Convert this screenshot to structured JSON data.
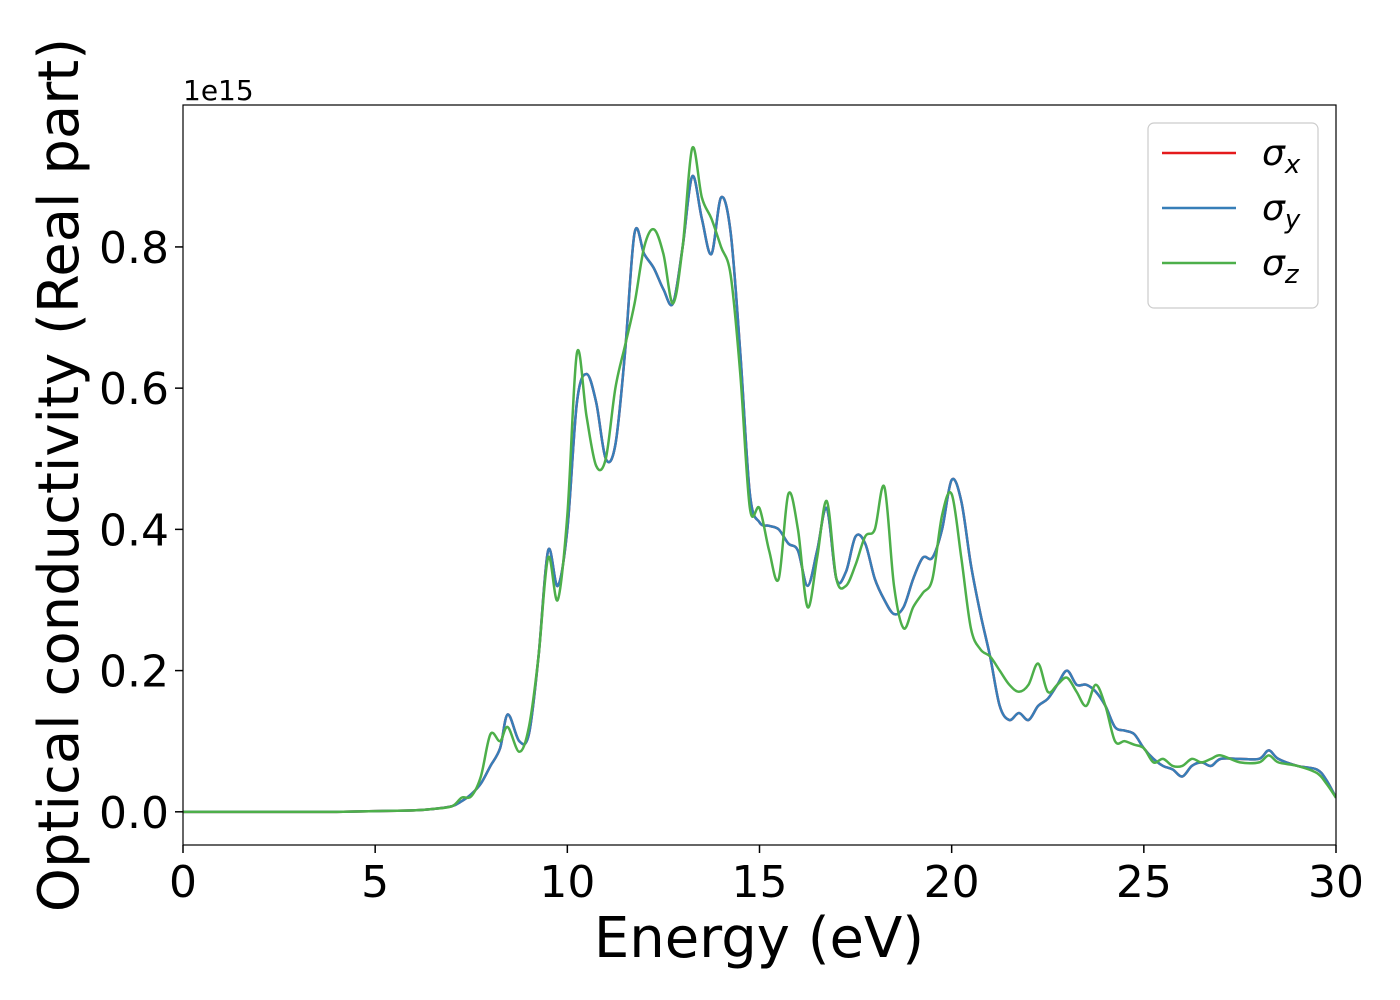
{
  "chart_data": {
    "type": "line",
    "x_label": "Energy (eV)",
    "y_label": "Optical conductivity (Real part)",
    "y_offset_label": "1e15",
    "xlim": [
      0,
      30
    ],
    "xticks": [
      0,
      5,
      10,
      15,
      20,
      25,
      30
    ],
    "ylim": [
      -0.047,
      1.001
    ],
    "yticks": [
      {
        "value": 0,
        "label": "0.0"
      },
      0.2,
      0.4,
      0.6,
      0.8
    ],
    "legend": "upper right",
    "x": [
      0,
      1,
      2,
      3,
      4,
      5,
      6,
      6.5,
      7,
      7.25,
      7.5,
      7.75,
      8,
      8.25,
      8.45,
      8.75,
      9,
      9.25,
      9.5,
      9.75,
      10,
      10.25,
      10.5,
      10.75,
      11,
      11.25,
      11.5,
      11.75,
      12,
      12.25,
      12.5,
      12.75,
      13,
      13.25,
      13.5,
      13.75,
      14,
      14.25,
      14.5,
      14.75,
      15,
      15.25,
      15.5,
      15.75,
      16,
      16.25,
      16.5,
      16.75,
      17,
      17.25,
      17.5,
      17.75,
      18,
      18.25,
      18.5,
      18.75,
      19,
      19.25,
      19.5,
      19.75,
      20,
      20.25,
      20.5,
      20.75,
      21,
      21.25,
      21.5,
      21.75,
      22,
      22.25,
      22.5,
      22.75,
      23,
      23.25,
      23.5,
      23.75,
      24,
      24.25,
      24.5,
      24.75,
      25,
      25.25,
      25.5,
      25.75,
      26,
      26.25,
      26.5,
      26.75,
      27,
      27.5,
      28,
      28.25,
      28.5,
      29,
      29.5,
      29.75,
      30
    ],
    "series": [
      {
        "name": "σx",
        "color": "#e41a1c",
        "values": [
          0,
          0,
          0,
          0,
          0,
          0.001,
          0.002,
          0.004,
          0.008,
          0.015,
          0.025,
          0.04,
          0.065,
          0.09,
          0.138,
          0.1,
          0.11,
          0.22,
          0.37,
          0.32,
          0.4,
          0.58,
          0.62,
          0.58,
          0.5,
          0.52,
          0.65,
          0.82,
          0.79,
          0.77,
          0.74,
          0.72,
          0.8,
          0.9,
          0.84,
          0.79,
          0.87,
          0.82,
          0.65,
          0.45,
          0.41,
          0.405,
          0.4,
          0.38,
          0.37,
          0.32,
          0.37,
          0.43,
          0.33,
          0.34,
          0.39,
          0.38,
          0.33,
          0.3,
          0.28,
          0.29,
          0.33,
          0.36,
          0.36,
          0.4,
          0.47,
          0.44,
          0.35,
          0.28,
          0.22,
          0.15,
          0.13,
          0.14,
          0.13,
          0.15,
          0.16,
          0.18,
          0.2,
          0.18,
          0.18,
          0.17,
          0.15,
          0.12,
          0.115,
          0.11,
          0.09,
          0.075,
          0.065,
          0.06,
          0.05,
          0.065,
          0.07,
          0.065,
          0.075,
          0.075,
          0.075,
          0.087,
          0.075,
          0.065,
          0.06,
          0.045,
          0.02
        ]
      },
      {
        "name": "σy",
        "color": "#377eb8",
        "values": [
          0,
          0,
          0,
          0,
          0,
          0.001,
          0.002,
          0.004,
          0.008,
          0.015,
          0.025,
          0.04,
          0.065,
          0.09,
          0.138,
          0.1,
          0.11,
          0.22,
          0.37,
          0.32,
          0.4,
          0.58,
          0.62,
          0.58,
          0.5,
          0.52,
          0.65,
          0.82,
          0.79,
          0.77,
          0.74,
          0.72,
          0.8,
          0.9,
          0.84,
          0.79,
          0.87,
          0.82,
          0.65,
          0.45,
          0.41,
          0.405,
          0.4,
          0.38,
          0.37,
          0.32,
          0.37,
          0.43,
          0.33,
          0.34,
          0.39,
          0.38,
          0.33,
          0.3,
          0.28,
          0.29,
          0.33,
          0.36,
          0.36,
          0.4,
          0.47,
          0.44,
          0.35,
          0.28,
          0.22,
          0.15,
          0.13,
          0.14,
          0.13,
          0.15,
          0.16,
          0.18,
          0.2,
          0.18,
          0.18,
          0.17,
          0.15,
          0.12,
          0.115,
          0.11,
          0.09,
          0.075,
          0.065,
          0.06,
          0.05,
          0.065,
          0.07,
          0.065,
          0.075,
          0.075,
          0.075,
          0.087,
          0.075,
          0.065,
          0.06,
          0.045,
          0.02
        ]
      },
      {
        "name": "σz",
        "color": "#4daf4a",
        "values": [
          0,
          0,
          0,
          0,
          0,
          0.001,
          0.002,
          0.004,
          0.008,
          0.02,
          0.022,
          0.05,
          0.11,
          0.1,
          0.12,
          0.085,
          0.12,
          0.22,
          0.36,
          0.3,
          0.42,
          0.65,
          0.56,
          0.49,
          0.5,
          0.6,
          0.66,
          0.72,
          0.8,
          0.825,
          0.79,
          0.72,
          0.8,
          0.94,
          0.87,
          0.84,
          0.8,
          0.76,
          0.62,
          0.43,
          0.43,
          0.37,
          0.33,
          0.45,
          0.4,
          0.29,
          0.36,
          0.44,
          0.33,
          0.32,
          0.35,
          0.39,
          0.4,
          0.46,
          0.32,
          0.26,
          0.29,
          0.31,
          0.33,
          0.42,
          0.45,
          0.36,
          0.26,
          0.23,
          0.22,
          0.2,
          0.18,
          0.17,
          0.18,
          0.21,
          0.17,
          0.18,
          0.19,
          0.17,
          0.15,
          0.18,
          0.15,
          0.1,
          0.1,
          0.095,
          0.09,
          0.07,
          0.075,
          0.065,
          0.065,
          0.075,
          0.07,
          0.075,
          0.08,
          0.07,
          0.07,
          0.08,
          0.07,
          0.065,
          0.055,
          0.04,
          0.02
        ]
      }
    ]
  }
}
